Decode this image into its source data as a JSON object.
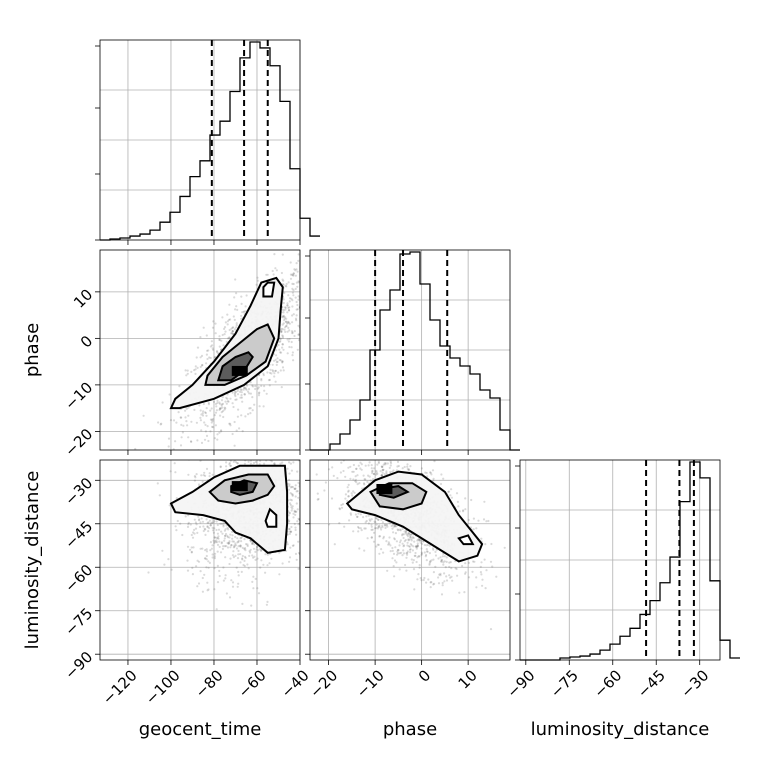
{
  "chart_data": {
    "type": "corner",
    "parameters": [
      {
        "key": "geocent_time",
        "label": "geocent_time",
        "range": [
          -133,
          -40
        ],
        "ticks": [
          -120,
          -100,
          -80,
          -60,
          -40
        ],
        "quantiles": [
          -81,
          -66,
          -55
        ]
      },
      {
        "key": "phase",
        "label": "phase",
        "range": [
          -24,
          19
        ],
        "ticks": [
          -20,
          -10,
          0,
          10
        ],
        "quantiles": [
          -10,
          -4,
          5.5
        ]
      },
      {
        "key": "luminosity_distance",
        "label": "luminosity_distance",
        "range": [
          -92,
          -23
        ],
        "ticks": [
          -90,
          -75,
          -60,
          -45,
          -30
        ],
        "quantiles": [
          -48.5,
          -37,
          -32
        ]
      }
    ],
    "histograms": [
      {
        "param": "geocent_time",
        "bin_start": -133,
        "bin_width": 4.65,
        "counts": [
          0,
          0.5,
          1,
          2,
          3,
          5,
          9,
          14,
          22,
          32,
          40,
          53,
          60,
          75,
          92,
          100,
          97,
          88,
          70,
          36,
          11,
          2
        ]
      },
      {
        "param": "phase",
        "bin_start": -24,
        "bin_width": 2.15,
        "counts": [
          0,
          0,
          3,
          8,
          15,
          25,
          50,
          70,
          80,
          98,
          99,
          83,
          65,
          52,
          46,
          42,
          38,
          30,
          26,
          10,
          0
        ]
      },
      {
        "param": "luminosity_distance",
        "bin_start": -92,
        "bin_width": 3.45,
        "counts": [
          0,
          0,
          0,
          0,
          1,
          1.5,
          2,
          3,
          5,
          8,
          12,
          16,
          23,
          30,
          39,
          52,
          80,
          100,
          92,
          40,
          10,
          1
        ]
      }
    ],
    "density_2d": [
      {
        "x": "geocent_time",
        "y": "phase",
        "correlation": 0.72,
        "mean": [
          -64,
          -3
        ],
        "sd": [
          14,
          8
        ],
        "peak": [
          -68,
          -7
        ],
        "contours": [
          [
            [
              -100,
              -15
            ],
            [
              -96,
              -15
            ],
            [
              -80,
              -13
            ],
            [
              -66,
              -10
            ],
            [
              -55,
              -6
            ],
            [
              -50,
              0
            ],
            [
              -49,
              6
            ],
            [
              -48,
              11
            ],
            [
              -51,
              13
            ],
            [
              -58,
              12
            ],
            [
              -63,
              7
            ],
            [
              -70,
              1
            ],
            [
              -80,
              -5
            ],
            [
              -90,
              -10
            ],
            [
              -98,
              -13
            ]
          ],
          [
            [
              -84,
              -10
            ],
            [
              -75,
              -10
            ],
            [
              -65,
              -8
            ],
            [
              -56,
              -5
            ],
            [
              -52,
              0
            ],
            [
              -55,
              3
            ],
            [
              -60,
              2
            ],
            [
              -68,
              -1
            ],
            [
              -76,
              -4
            ],
            [
              -83,
              -8
            ]
          ],
          [
            [
              -78,
              -9
            ],
            [
              -72,
              -9
            ],
            [
              -66,
              -7
            ],
            [
              -62,
              -4
            ],
            [
              -64,
              -3
            ],
            [
              -70,
              -4
            ],
            [
              -76,
              -6
            ]
          ],
          [
            [
              -57,
              9
            ],
            [
              -53,
              9
            ],
            [
              -52,
              12
            ],
            [
              -55,
              12
            ],
            [
              -57,
              11
            ]
          ]
        ]
      },
      {
        "x": "geocent_time",
        "y": "luminosity_distance",
        "correlation": 0.15,
        "mean": [
          -64,
          -40
        ],
        "sd": [
          14,
          11
        ],
        "peak": [
          -68,
          -32
        ],
        "contours": [
          [
            [
              -100,
              -38
            ],
            [
              -90,
              -34
            ],
            [
              -80,
              -29
            ],
            [
              -68,
              -25
            ],
            [
              -54,
              -25
            ],
            [
              -47,
              -25
            ],
            [
              -46,
              -34
            ],
            [
              -46,
              -45
            ],
            [
              -47,
              -54
            ],
            [
              -55,
              -55
            ],
            [
              -63,
              -50
            ],
            [
              -70,
              -48
            ],
            [
              -75,
              -44
            ],
            [
              -85,
              -42
            ],
            [
              -98,
              -41
            ]
          ],
          [
            [
              -82,
              -34
            ],
            [
              -75,
              -30
            ],
            [
              -64,
              -28
            ],
            [
              -55,
              -28
            ],
            [
              -52,
              -32
            ],
            [
              -55,
              -35
            ],
            [
              -62,
              -37
            ],
            [
              -70,
              -38
            ],
            [
              -78,
              -37
            ]
          ],
          [
            [
              -72,
              -32
            ],
            [
              -66,
              -30
            ],
            [
              -60,
              -31
            ],
            [
              -62,
              -34
            ],
            [
              -68,
              -35
            ],
            [
              -72,
              -34
            ]
          ],
          [
            [
              -56,
              -44
            ],
            [
              -54,
              -40
            ],
            [
              -51,
              -42
            ],
            [
              -51,
              -46
            ],
            [
              -55,
              -46
            ]
          ]
        ]
      },
      {
        "x": "phase",
        "y": "luminosity_distance",
        "correlation": -0.55,
        "mean": [
          -3,
          -42
        ],
        "sd": [
          7,
          10
        ],
        "peak": [
          -8,
          -33
        ],
        "contours": [
          [
            [
              -16,
              -38
            ],
            [
              -10,
              -30
            ],
            [
              -5,
              -27
            ],
            [
              0,
              -28
            ],
            [
              5,
              -34
            ],
            [
              8,
              -42
            ],
            [
              11,
              -48
            ],
            [
              13,
              -52
            ],
            [
              12,
              -56
            ],
            [
              8,
              -58
            ],
            [
              3,
              -53
            ],
            [
              -4,
              -46
            ],
            [
              -10,
              -42
            ],
            [
              -15,
              -40
            ]
          ],
          [
            [
              -11,
              -34
            ],
            [
              -7,
              -31
            ],
            [
              -2,
              -31
            ],
            [
              1,
              -34
            ],
            [
              0,
              -38
            ],
            [
              -4,
              -40
            ],
            [
              -9,
              -39
            ]
          ],
          [
            [
              -9,
              -33
            ],
            [
              -5,
              -32
            ],
            [
              -3,
              -34
            ],
            [
              -6,
              -36
            ],
            [
              -9,
              -35
            ]
          ],
          [
            [
              8,
              -50
            ],
            [
              10,
              -49
            ],
            [
              11,
              -52
            ],
            [
              9,
              -52
            ]
          ]
        ]
      }
    ],
    "grid": true,
    "color": "#000000"
  }
}
